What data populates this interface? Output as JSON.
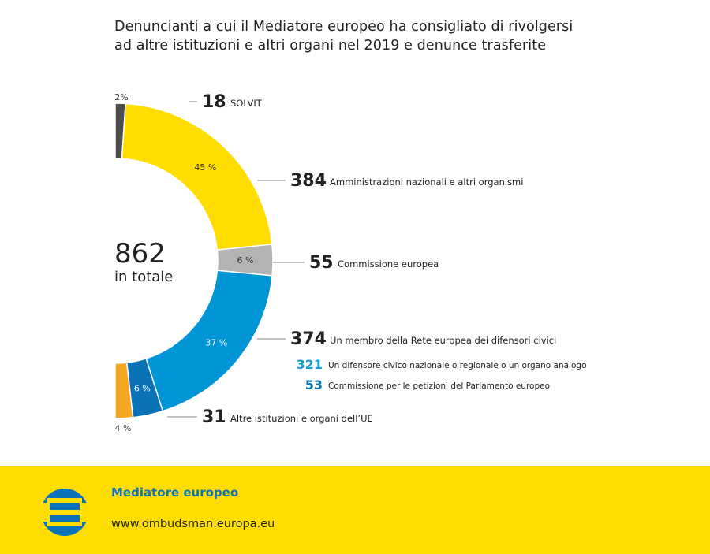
{
  "title_line1": "Denuncianti a cui il Mediatore europeo ha consigliato di rivolgersi",
  "title_line2": "ad altre istituzioni e altri organi nel 2019 e denunce trasferite",
  "total": {
    "value": "862",
    "label": "in totale"
  },
  "colors": {
    "yellow": "#ffdd00",
    "gray": "#b3b3b3",
    "blue": "#0095d6",
    "blue_dark": "#0a73b8",
    "orange": "#f5a623",
    "dark": "#4d4d4d"
  },
  "chart_data": {
    "type": "pie",
    "variant": "half-donut",
    "total": 862,
    "slices": [
      {
        "value": 18,
        "pct_label": "2%",
        "label": "SOLVIT",
        "color": "#4d4d4d"
      },
      {
        "value": 384,
        "pct_label": "45 %",
        "label": "Amministrazioni nazionali e altri organismi",
        "color": "#ffdd00"
      },
      {
        "value": 55,
        "pct_label": "6 %",
        "label": "Commissione europea",
        "color": "#b3b3b3"
      },
      {
        "value": 374,
        "label": "Un membro della Rete europea dei difensori civici",
        "sub": [
          {
            "value": 321,
            "pct_label": "37 %",
            "label": "Un difensore civico nazionale o regionale o un organo analogo",
            "color": "#0095d6"
          },
          {
            "value": 53,
            "pct_label": "6 %",
            "label": "Commissione per le petizioni del Parlamento europeo",
            "color": "#0a73b8"
          }
        ]
      },
      {
        "value": 31,
        "pct_label": "4 %",
        "label": "Altre istituzioni e organi dell’UE",
        "color": "#f5a623"
      }
    ]
  },
  "footer": {
    "org": "Mediatore europeo",
    "url": "www.ombudsman.europa.eu",
    "logo_icon": "ombudsman-logo-icon"
  }
}
